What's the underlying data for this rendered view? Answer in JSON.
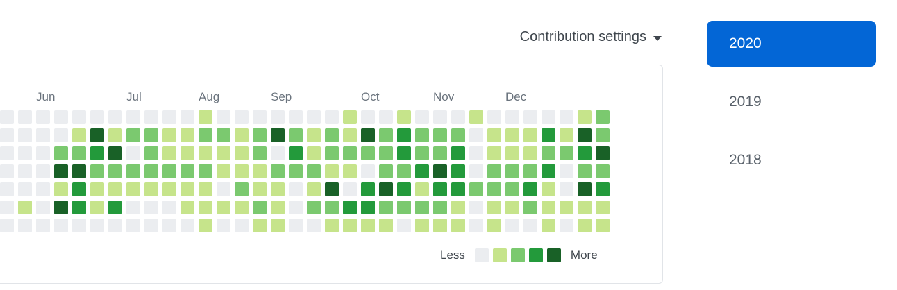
{
  "header": {
    "contribution_settings_label": "Contribution settings",
    "caret_icon": "triangle-down"
  },
  "year_list": {
    "selected_color": "#0366d6",
    "items": [
      {
        "label": "2020",
        "active": true
      },
      {
        "label": "2019",
        "active": false
      },
      {
        "label": "2018",
        "active": false
      }
    ]
  },
  "chart_data": {
    "type": "heatmap",
    "weeks_visible": 34,
    "day_rows": 7,
    "palette": [
      "#ebedf0",
      "#c6e48b",
      "#7bc96f",
      "#239a3b",
      "#196127"
    ],
    "month_labels": [
      {
        "label": "Jun",
        "week": 2
      },
      {
        "label": "Jul",
        "week": 7
      },
      {
        "label": "Aug",
        "week": 11
      },
      {
        "label": "Sep",
        "week": 15
      },
      {
        "label": "Oct",
        "week": 20
      },
      {
        "label": "Nov",
        "week": 24
      },
      {
        "label": "Dec",
        "week": 28
      }
    ],
    "grid_rows_by_day": [
      "0000000000010000000100100010000012",
      "0000141221122124212142322201113142",
      "0002234021111120312222322301112234",
      "0004422222221112221102234302223022",
      "0001311111110211014034313322231043",
      "0104313000111121022332222101121111",
      "0000000000010011001111011101001011"
    ],
    "legend": {
      "less": "Less",
      "more": "More"
    }
  }
}
